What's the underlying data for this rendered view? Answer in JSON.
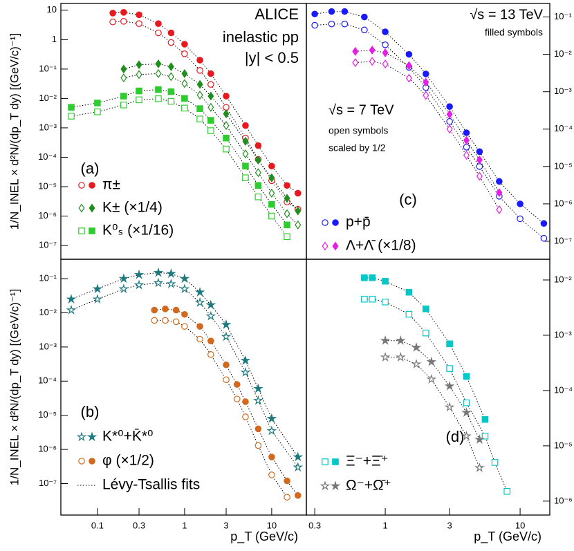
{
  "chart_data": [
    {
      "type": "scatter",
      "panel": "(a)",
      "xlim": [
        0.038,
        25
      ],
      "ylim": [
        3.4e-08,
        17
      ],
      "log": true,
      "ylabel": "1/N_INEL × d²N/(dp_T dy) [(GeV/c)⁻¹]",
      "yticks": [
        10,
        1,
        {
          "value": 0.1,
          "label": "10⁻¹"
        },
        {
          "value": 0.01,
          "label": "10⁻²"
        },
        {
          "value": 0.001,
          "label": "10⁻³"
        },
        {
          "value": 0.0001,
          "label": "10⁻⁴"
        },
        {
          "value": 1e-05,
          "label": "10⁻⁵"
        },
        {
          "value": 1e-06,
          "label": "10⁻⁶"
        },
        {
          "value": 1e-07,
          "label": "10⁻⁷"
        }
      ],
      "annotations": [
        "ALICE",
        "inelastic pp",
        "|y| < 0.5"
      ],
      "series": [
        {
          "name": "π±",
          "color": "#e8191e",
          "marker": "circle",
          "x": [
            0.15,
            0.2,
            0.3,
            0.5,
            0.7,
            1,
            1.5,
            2,
            3,
            5,
            7,
            10,
            15,
            20
          ],
          "values": [
            8,
            8.5,
            7,
            3.5,
            1.7,
            0.7,
            0.2,
            0.07,
            0.012,
            0.0012,
            0.00025,
            5e-05,
            1.1e-05,
            6e-06
          ],
          "values_open": [
            4,
            4.2,
            3.5,
            1.7,
            0.8,
            0.33,
            0.09,
            0.03,
            0.005,
            0.00045,
            8.5e-05,
            1.6e-05,
            3e-06,
            1.7e-06
          ]
        },
        {
          "name": "K± (×1/4)",
          "color": "#1f8f1f",
          "marker": "diamond",
          "x": [
            0.2,
            0.3,
            0.5,
            0.7,
            1,
            1.5,
            2,
            3,
            5,
            7,
            10,
            15,
            20
          ],
          "values": [
            0.1,
            0.14,
            0.15,
            0.12,
            0.07,
            0.03,
            0.012,
            0.003,
            0.00035,
            8e-05,
            2e-05,
            4e-06,
            1.5e-06
          ],
          "values_open": [
            0.05,
            0.065,
            0.07,
            0.055,
            0.032,
            0.013,
            0.005,
            0.0012,
            0.00013,
            3e-05,
            6e-06,
            1.2e-06,
            5e-07
          ]
        },
        {
          "name": "K⁰ₛ  (×1/16)",
          "color": "#2ecc2e",
          "marker": "square",
          "x": [
            0.05,
            0.1,
            0.2,
            0.3,
            0.5,
            0.7,
            1,
            1.5,
            2,
            3,
            5,
            7,
            10,
            15
          ],
          "values": [
            0.005,
            0.007,
            0.012,
            0.018,
            0.02,
            0.017,
            0.01,
            0.0045,
            0.0018,
            0.00045,
            5e-05,
            1.1e-05,
            2.5e-06,
            5e-07
          ],
          "values_open": [
            0.0025,
            0.0035,
            0.006,
            0.009,
            0.0098,
            0.008,
            0.0047,
            0.002,
            0.0008,
            0.00019,
            2e-05,
            4.5e-06,
            1e-06,
            2e-07
          ]
        }
      ]
    },
    {
      "type": "scatter",
      "panel": "(b)",
      "xlim": [
        0.038,
        25
      ],
      "ylim": [
        1.2e-08,
        0.37
      ],
      "log": true,
      "ylabel": "1/N_INEL × d²N/(dp_T dy) [(GeV/c)⁻¹]",
      "xlabel": "p_T (GeV/c)",
      "xticks": [
        0.1,
        0.3,
        1,
        3,
        10
      ],
      "yticks": [
        {
          "value": 0.1,
          "label": "10⁻¹"
        },
        {
          "value": 0.01,
          "label": "10⁻²"
        },
        {
          "value": 0.001,
          "label": "10⁻³"
        },
        {
          "value": 0.0001,
          "label": "10⁻⁴"
        },
        {
          "value": 1e-05,
          "label": "10⁻⁵"
        },
        {
          "value": 1e-06,
          "label": "10⁻⁶"
        },
        {
          "value": 1e-07,
          "label": "10⁻⁷"
        }
      ],
      "fit_label": "Lévy-Tsallis fits",
      "series": [
        {
          "name": "K*⁰+K̄*⁰",
          "color": "#1f7a80",
          "marker": "star",
          "x": [
            0.05,
            0.1,
            0.2,
            0.3,
            0.5,
            0.7,
            1,
            1.5,
            2,
            3,
            5,
            7,
            10,
            20
          ],
          "values": [
            0.025,
            0.05,
            0.1,
            0.13,
            0.15,
            0.14,
            0.1,
            0.04,
            0.017,
            0.0045,
            0.0004,
            6e-05,
            8e-06,
            6e-07
          ],
          "values_open": [
            0.012,
            0.025,
            0.05,
            0.065,
            0.075,
            0.07,
            0.05,
            0.02,
            0.008,
            0.002,
            0.00018,
            2.7e-05,
            3.5e-06,
            3e-07
          ]
        },
        {
          "name": "φ (×1/2)",
          "color": "#d2691e",
          "marker": "circle",
          "x": [
            0.45,
            0.6,
            0.8,
            1,
            1.5,
            2,
            3,
            4,
            5,
            7,
            10,
            15,
            20
          ],
          "values": [
            0.012,
            0.013,
            0.012,
            0.009,
            0.004,
            0.0015,
            0.0003,
            8e-05,
            2.5e-05,
            4e-06,
            6e-07,
            1.2e-07,
            4.5e-08
          ],
          "values_open": [
            0.006,
            0.006,
            0.0055,
            0.004,
            0.0017,
            0.0006,
            0.00011,
            3e-05,
            9e-06,
            1.3e-06,
            1.8e-07,
            4e-08,
            null
          ]
        }
      ]
    },
    {
      "type": "scatter",
      "panel": "(c)",
      "xlim": [
        0.26,
        16.6
      ],
      "y2lim": [
        3.3e-08,
        0.23
      ],
      "log": true,
      "annotations": [
        "√s = 13 TeV",
        "filled symbols",
        "√s = 7 TeV",
        "open symbols",
        "scaled by 1/2"
      ],
      "y2ticks": [
        {
          "value": 0.1,
          "label": "10⁻¹"
        },
        {
          "value": 0.01,
          "label": "10⁻²"
        },
        {
          "value": 0.001,
          "label": "10⁻³"
        },
        {
          "value": 0.0001,
          "label": "10⁻⁴"
        },
        {
          "value": 1e-05,
          "label": "10⁻⁵"
        },
        {
          "value": 1e-06,
          "label": "10⁻⁶"
        },
        {
          "value": 1e-07,
          "label": "10⁻⁷"
        }
      ],
      "series": [
        {
          "name": "p+p̄",
          "color": "#1a1aff",
          "marker": "circle",
          "axis": "y2",
          "x": [
            0.3,
            0.4,
            0.5,
            0.7,
            1,
            1.5,
            2,
            3,
            4,
            5,
            7,
            10,
            15
          ],
          "values": [
            0.12,
            0.14,
            0.14,
            0.1,
            0.04,
            0.01,
            0.003,
            0.0004,
            8e-05,
            2.5e-05,
            4e-06,
            1e-06,
            3e-07
          ],
          "values_open": [
            0.06,
            0.065,
            0.065,
            0.045,
            0.018,
            0.0045,
            0.0013,
            0.00016,
            3.3e-05,
            1e-05,
            1.6e-06,
            4e-07,
            1.2e-07
          ]
        },
        {
          "name": "Λ+Λ̄ (×1/8)",
          "color": "#e61ee6",
          "marker": "diamond",
          "axis": "y2",
          "x": [
            0.6,
            0.8,
            1,
            1.5,
            2,
            3,
            4,
            5,
            7
          ],
          "values": [
            0.012,
            0.013,
            0.011,
            0.005,
            0.0018,
            0.00025,
            5e-05,
            1.5e-05,
            2e-06
          ],
          "values_open": [
            0.006,
            0.0065,
            0.0055,
            0.0023,
            0.0008,
            0.0001,
            2e-05,
            5.5e-06,
            7e-07
          ]
        }
      ]
    },
    {
      "type": "scatter",
      "panel": "(d)",
      "xlim": [
        0.26,
        16.6
      ],
      "y2lim": [
        5.6e-07,
        0.0237
      ],
      "log": true,
      "xlabel": "p_T (GeV/c)",
      "xticks": [
        0.3,
        1,
        3,
        10
      ],
      "y2ticks": [
        {
          "value": 0.01,
          "label": "10⁻²"
        },
        {
          "value": 0.001,
          "label": "10⁻³"
        },
        {
          "value": 0.0001,
          "label": "10⁻⁴"
        },
        {
          "value": 1e-05,
          "label": "10⁻⁵"
        },
        {
          "value": 1e-06,
          "label": "10⁻⁶"
        }
      ],
      "series": [
        {
          "name": "Ξ⁻+Ξ̄⁺",
          "color": "#00c8c8",
          "marker": "square",
          "axis": "y2",
          "x": [
            0.7,
            0.8,
            1,
            1.5,
            2,
            3,
            4,
            5.5,
            6.5,
            8
          ],
          "values": [
            0.011,
            0.011,
            0.0095,
            0.006,
            0.003,
            0.0007,
            0.00018,
            3e-05,
            null,
            null
          ],
          "values_open": [
            0.0045,
            0.0045,
            0.004,
            0.0024,
            0.0011,
            0.00025,
            6e-05,
            1.5e-05,
            5e-06,
            1.5e-06
          ]
        },
        {
          "name": "Ω⁻+Ω̄⁺",
          "color": "#777777",
          "marker": "star",
          "axis": "y2",
          "x": [
            1,
            1.3,
            1.7,
            2.2,
            3,
            4,
            5
          ],
          "values": [
            0.0008,
            0.0008,
            0.0006,
            0.00033,
            0.00012,
            4e-05,
            1.3e-05
          ],
          "values_open": [
            0.0004,
            0.0004,
            0.0003,
            0.00016,
            5e-05,
            1.5e-05,
            4e-06
          ]
        }
      ]
    }
  ]
}
